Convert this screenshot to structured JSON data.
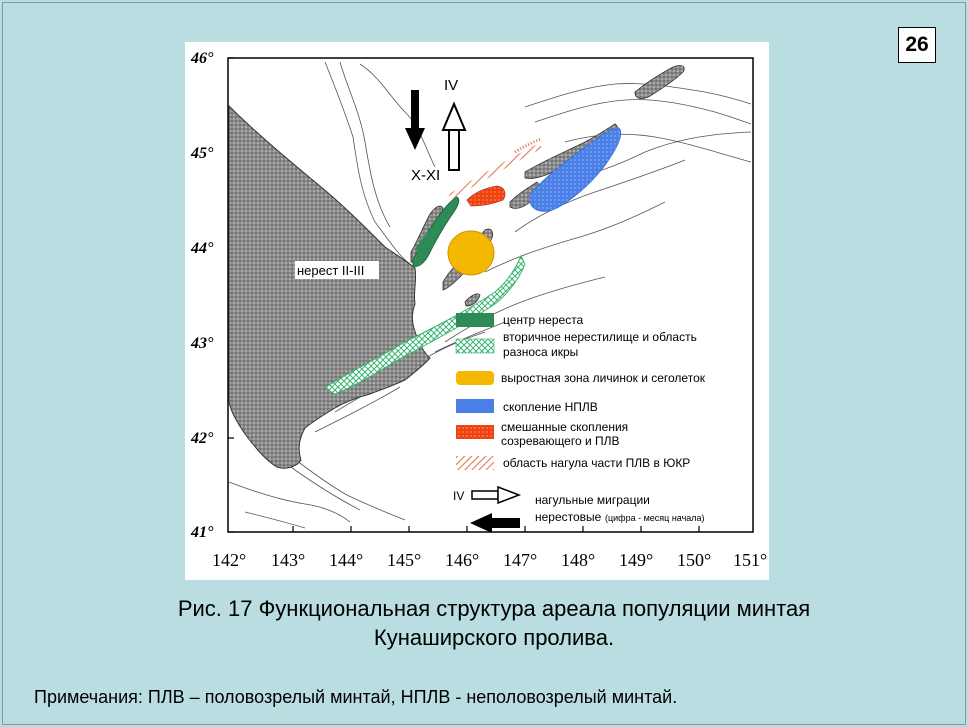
{
  "slide_number": "26",
  "map": {
    "lat_labels": [
      "46°",
      "45°",
      "44°",
      "43°",
      "42°",
      "41°"
    ],
    "lon_labels": [
      "142°",
      "143°",
      "144°",
      "145°",
      "146°",
      "147°",
      "148°",
      "149°",
      "150°",
      "151°"
    ],
    "region_label": "нерест II-III",
    "arrow_down_label": "X-XI",
    "arrow_up_label": "IV",
    "legend": {
      "spawning_center": "центр нереста",
      "secondary_line1": "вторичное нерестилище и область",
      "secondary_line2": "разноса икры",
      "nursery": "выростная зона личинок и сеголеток",
      "immature": "скопление НПЛВ",
      "mixed_line1": "смешанные скопления",
      "mixed_line2": "созревающего и ПЛВ",
      "feeding_area": "область нагула части ПЛВ в ЮКР",
      "migration_roman": "IV",
      "feeding_migration": "нагульные   миграции",
      "spawning_migration": "нерестовые",
      "migration_note": "(цифра - месяц начала)"
    },
    "colors": {
      "spawning_center": "#2e8b57",
      "secondary": "#3cb371",
      "nursery": "#f5b800",
      "immature": "#4a7fe8",
      "mixed": "#ee4411",
      "feeding": "#e0704a"
    }
  },
  "caption": {
    "line1": "Рис. 17 Функциональная структура ареала популяции минтая",
    "line2": "Кунаширского пролива."
  },
  "note": "Примечания: ПЛВ – половозрелый минтай, НПЛВ -  неполовозрелый минтай."
}
